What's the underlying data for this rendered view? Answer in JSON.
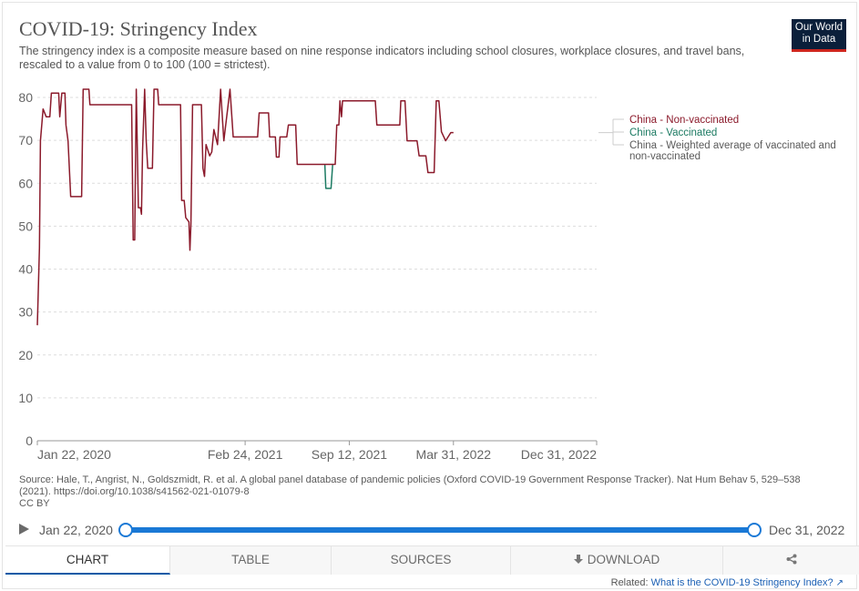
{
  "header": {
    "title": "COVID-19: Stringency Index",
    "subtitle": "The stringency index is a composite measure based on nine response indicators including school closures, workplace closures, and travel bans, rescaled to a value from 0 to 100 (100 = strictest).",
    "logo_line1": "Our World",
    "logo_line2": "in Data"
  },
  "chart_data": {
    "type": "line",
    "title": "COVID-19: Stringency Index",
    "xlabel": "",
    "ylabel": "",
    "ylim": [
      0,
      80
    ],
    "yticks": [
      0,
      10,
      20,
      30,
      40,
      50,
      60,
      70,
      80
    ],
    "xlim": [
      "2020-01-22",
      "2022-12-31"
    ],
    "xticks": [
      "2020-01-22",
      "2021-02-24",
      "2021-09-12",
      "2022-03-31",
      "2022-12-31"
    ],
    "xtick_labels": [
      "Jan 22, 2020",
      "Feb 24, 2021",
      "Sep 12, 2021",
      "Mar 31, 2022",
      "Dec 31, 2022"
    ],
    "grid": "horizontal dashed",
    "legend_position": "right",
    "series": [
      {
        "name": "China - Non-vaccinated",
        "color": "#8b1a2b",
        "points": [
          [
            "2020-01-22",
            26.9
          ],
          [
            "2020-01-26",
            44.9
          ],
          [
            "2020-01-28",
            69.9
          ],
          [
            "2020-02-02",
            77.3
          ],
          [
            "2020-02-08",
            75.5
          ],
          [
            "2020-02-15",
            75.5
          ],
          [
            "2020-02-18",
            81.0
          ],
          [
            "2020-03-03",
            81.0
          ],
          [
            "2020-03-05",
            75.5
          ],
          [
            "2020-03-09",
            81.0
          ],
          [
            "2020-03-15",
            81.0
          ],
          [
            "2020-03-17",
            73.6
          ],
          [
            "2020-03-21",
            69.9
          ],
          [
            "2020-03-26",
            56.9
          ],
          [
            "2020-04-16",
            56.9
          ],
          [
            "2020-04-19",
            81.9
          ],
          [
            "2020-04-30",
            81.9
          ],
          [
            "2020-05-02",
            78.3
          ],
          [
            "2020-07-21",
            78.3
          ],
          [
            "2020-07-24",
            46.8
          ],
          [
            "2020-07-27",
            46.8
          ],
          [
            "2020-07-30",
            81.9
          ],
          [
            "2020-08-03",
            54.3
          ],
          [
            "2020-08-07",
            54.3
          ],
          [
            "2020-08-09",
            52.8
          ],
          [
            "2020-08-11",
            67.6
          ],
          [
            "2020-08-15",
            81.9
          ],
          [
            "2020-08-18",
            69.9
          ],
          [
            "2020-08-21",
            63.5
          ],
          [
            "2020-08-30",
            63.5
          ],
          [
            "2020-09-02",
            81.9
          ],
          [
            "2020-09-09",
            81.9
          ],
          [
            "2020-09-11",
            78.3
          ],
          [
            "2020-10-23",
            78.3
          ],
          [
            "2020-10-25",
            56.0
          ],
          [
            "2020-10-30",
            56.0
          ],
          [
            "2020-11-02",
            52.0
          ],
          [
            "2020-11-08",
            51.0
          ],
          [
            "2020-11-10",
            44.4
          ],
          [
            "2020-11-12",
            50.5
          ],
          [
            "2020-11-15",
            78.3
          ],
          [
            "2020-12-02",
            78.3
          ],
          [
            "2020-12-05",
            63.5
          ],
          [
            "2020-12-08",
            61.6
          ],
          [
            "2020-12-11",
            69.0
          ],
          [
            "2020-12-18",
            66.4
          ],
          [
            "2020-12-22",
            67.3
          ],
          [
            "2020-12-26",
            72.5
          ],
          [
            "2021-01-02",
            69.0
          ],
          [
            "2021-01-08",
            81.9
          ],
          [
            "2021-01-14",
            69.9
          ],
          [
            "2021-01-26",
            81.9
          ],
          [
            "2021-02-01",
            70.8
          ],
          [
            "2021-03-20",
            70.8
          ],
          [
            "2021-03-23",
            76.4
          ],
          [
            "2021-04-10",
            76.4
          ],
          [
            "2021-04-12",
            70.8
          ],
          [
            "2021-04-23",
            70.8
          ],
          [
            "2021-04-25",
            66.1
          ],
          [
            "2021-04-30",
            66.1
          ],
          [
            "2021-05-02",
            70.8
          ],
          [
            "2021-05-15",
            70.8
          ],
          [
            "2021-05-18",
            73.6
          ],
          [
            "2021-06-01",
            73.6
          ],
          [
            "2021-06-04",
            64.4
          ],
          [
            "2021-07-27",
            64.4
          ],
          [
            "2021-07-29",
            64.4
          ],
          [
            "2021-08-16",
            64.4
          ],
          [
            "2021-08-19",
            73.6
          ],
          [
            "2021-08-23",
            73.6
          ],
          [
            "2021-08-25",
            79.2
          ],
          [
            "2021-08-28",
            75.5
          ],
          [
            "2021-08-30",
            79.2
          ],
          [
            "2021-11-01",
            79.2
          ],
          [
            "2021-11-04",
            73.6
          ],
          [
            "2021-12-18",
            73.6
          ],
          [
            "2021-12-20",
            79.2
          ],
          [
            "2021-12-28",
            79.2
          ],
          [
            "2022-01-01",
            69.9
          ],
          [
            "2022-01-20",
            69.9
          ],
          [
            "2022-01-24",
            66.4
          ],
          [
            "2022-02-06",
            66.4
          ],
          [
            "2022-02-10",
            62.5
          ],
          [
            "2022-02-22",
            62.5
          ],
          [
            "2022-02-26",
            79.2
          ],
          [
            "2022-03-03",
            79.2
          ],
          [
            "2022-03-08",
            72.0
          ],
          [
            "2022-03-16",
            69.9
          ],
          [
            "2022-03-26",
            71.8
          ],
          [
            "2022-03-31",
            71.8
          ]
        ]
      },
      {
        "name": "China - Vaccinated",
        "color": "#1b7a62",
        "points": [
          [
            "2021-07-27",
            64.4
          ],
          [
            "2021-07-29",
            58.8
          ],
          [
            "2021-08-08",
            58.8
          ],
          [
            "2021-08-11",
            64.4
          ]
        ]
      },
      {
        "name": "China - Weighted average of vaccinated and non-vaccinated",
        "color": "#5a5a5a",
        "points": []
      }
    ]
  },
  "source": {
    "text": "Source: Hale, T., Angrist, N., Goldszmidt, R. et al. A global panel database of pandemic policies (Oxford COVID-19 Government Response Tracker). Nat Hum Behav 5, 529–538 (2021). https://doi.org/10.1038/s41562-021-01079-8",
    "license": "CC BY"
  },
  "timeline": {
    "start_label": "Jan 22, 2020",
    "end_label": "Dec 31, 2022",
    "selected_start_fraction": 0,
    "selected_end_fraction": 1
  },
  "tabs": [
    "Chart",
    "Table",
    "Sources",
    "Download",
    ""
  ],
  "active_tab": "Chart",
  "related": {
    "prefix": "Related:",
    "link_text": "What is the COVID-19 Stringency Index?"
  }
}
